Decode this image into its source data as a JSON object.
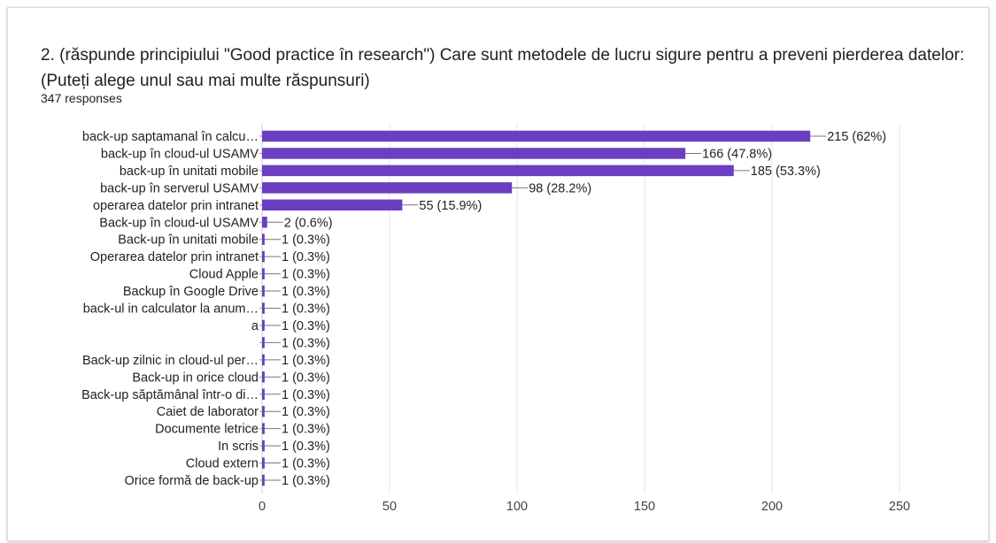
{
  "question": "2. (răspunde principiului \"Good practice în research\")   Care sunt metodele de lucru sigure pentru a preveni pierderea datelor:   (Puteți alege unul sau mai multe răspunsuri)",
  "responses": "347 responses",
  "colors": {
    "bar": "#6a3fc1",
    "grid": "#e6e6e6",
    "axis": "#cfcfcf"
  },
  "chart_data": {
    "type": "bar",
    "orientation": "horizontal",
    "categories": [
      "back-up saptamanal în calcu…",
      "back-up în cloud-ul USAMV",
      "back-up în unitati mobile",
      "back-up în serverul USAMV",
      "operarea datelor prin intranet",
      "Back-up în cloud-ul USAMV",
      "Back-up în unitati mobile",
      "Operarea datelor prin intranet",
      "Cloud Apple",
      "Backup în Google Drive",
      "back-ul in calculator la anum…",
      "a",
      "",
      "Back-up zilnic in cloud-ul per…",
      "Back-up in orice cloud",
      "Back-up săptămânal într-o di…",
      "Caiet de laborator",
      "Documente letrice",
      "In scris",
      "Cloud extern",
      "Orice formă de back-up"
    ],
    "values": [
      215,
      166,
      185,
      98,
      55,
      2,
      1,
      1,
      1,
      1,
      1,
      1,
      1,
      1,
      1,
      1,
      1,
      1,
      1,
      1,
      1
    ],
    "value_labels": [
      "215 (62%)",
      "166 (47.8%)",
      "185 (53.3%)",
      "98 (28.2%)",
      "55 (15.9%)",
      "2 (0.6%)",
      "1 (0.3%)",
      "1 (0.3%)",
      "1 (0.3%)",
      "1 (0.3%)",
      "1 (0.3%)",
      "1 (0.3%)",
      "1 (0.3%)",
      "1 (0.3%)",
      "1 (0.3%)",
      "1 (0.3%)",
      "1 (0.3%)",
      "1 (0.3%)",
      "1 (0.3%)",
      "1 (0.3%)",
      "1 (0.3%)"
    ],
    "x_ticks": [
      "0",
      "50",
      "100",
      "150",
      "200",
      "250"
    ],
    "xlim": [
      0,
      250
    ],
    "grid": true
  }
}
